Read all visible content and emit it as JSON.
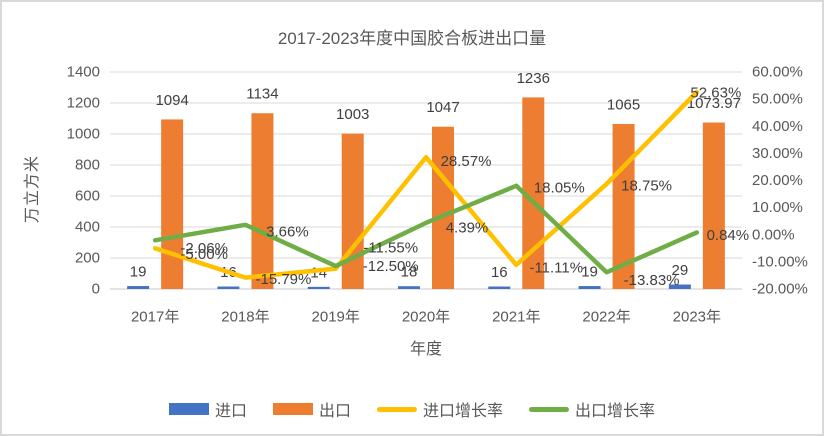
{
  "chart_data": {
    "type": "combo",
    "title": "2017-2023年度中国胶合板进出口量",
    "xlabel": "年度",
    "ylabel": "万立方米",
    "categories": [
      "2017年",
      "2018年",
      "2019年",
      "2020年",
      "2021年",
      "2022年",
      "2023年"
    ],
    "left_axis": {
      "min": 0,
      "max": 1400,
      "ticks": [
        "0",
        "200",
        "400",
        "600",
        "800",
        "1000",
        "1200",
        "1400"
      ]
    },
    "right_axis": {
      "min": -20,
      "max": 60,
      "ticks": [
        "-20.00%",
        "-10.00%",
        "0.00%",
        "10.00%",
        "20.00%",
        "30.00%",
        "40.00%",
        "50.00%",
        "60.00%"
      ]
    },
    "grid": true,
    "legend_position": "bottom",
    "colors": {
      "grid": "#D9D9D9",
      "axis_text": "#595959",
      "data_label_text": "#404040"
    },
    "series": [
      {
        "key": "import",
        "name": "进口",
        "type": "bar",
        "axis": "left",
        "color": "#4472C4",
        "values": [
          19,
          16,
          14,
          18,
          16,
          19,
          29
        ],
        "labels": [
          "19",
          "16",
          "14",
          "18",
          "16",
          "19",
          "29"
        ]
      },
      {
        "key": "export",
        "name": "出口",
        "type": "bar",
        "axis": "left",
        "color": "#ED7D31",
        "values": [
          1094,
          1134,
          1003,
          1047,
          1236,
          1065,
          1073.97
        ],
        "labels": [
          "1094",
          "1134",
          "1003",
          "1047",
          "1236",
          "1065",
          "1073.97"
        ]
      },
      {
        "key": "import-growth-rate",
        "name": "进口增长率",
        "type": "line",
        "axis": "right",
        "color": "#FFC000",
        "values": [
          -5.0,
          -15.79,
          -12.5,
          28.57,
          -11.11,
          18.75,
          52.63
        ],
        "labels": [
          "-5.00%",
          "-15.79%",
          "-12.50%",
          "28.57%",
          "-11.11%",
          "18.75%",
          "52.63%"
        ]
      },
      {
        "key": "export-growth-rate",
        "name": "出口增长率",
        "type": "line",
        "axis": "right",
        "color": "#70AD47",
        "values": [
          -2.06,
          3.66,
          -11.55,
          4.39,
          18.05,
          -13.83,
          0.84
        ],
        "labels": [
          "-2.06%",
          "3.66%",
          "-11.55%",
          "4.39%",
          "18.05%",
          "-13.83%",
          "0.84%"
        ]
      }
    ]
  }
}
